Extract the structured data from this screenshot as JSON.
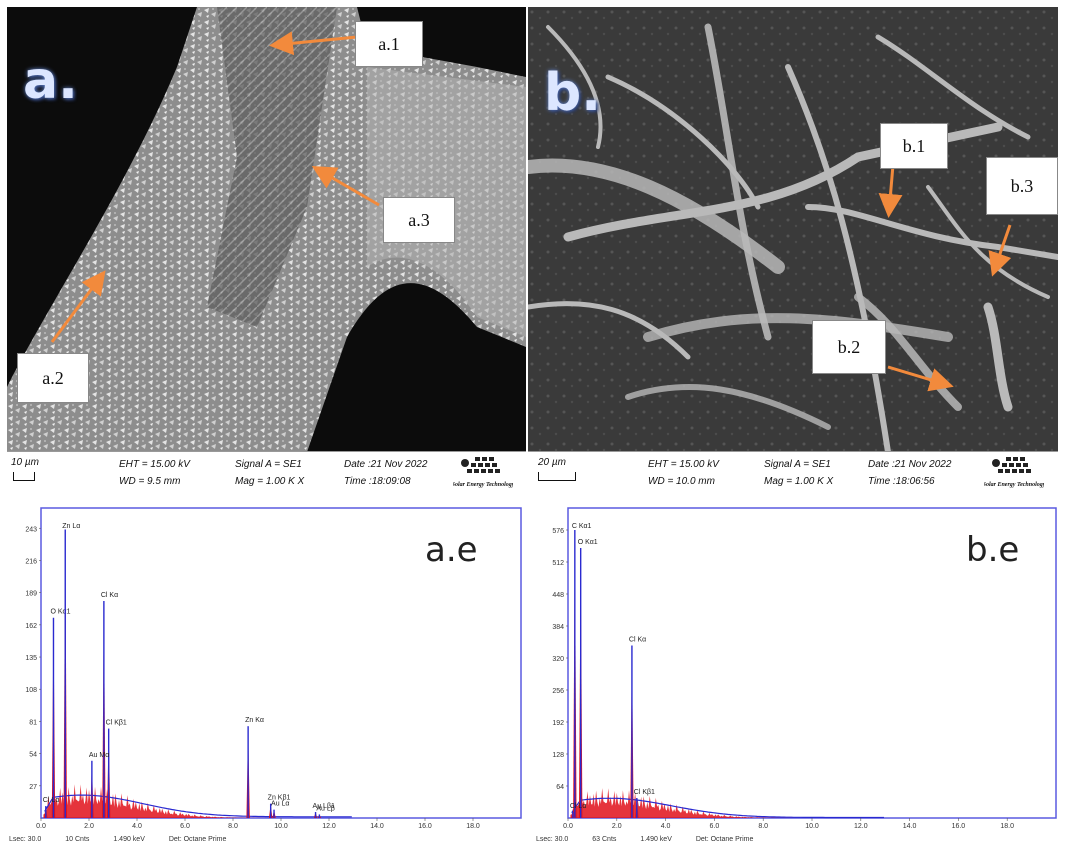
{
  "panels": {
    "a": {
      "letter": "a.",
      "labels": [
        "a.1",
        "a.2",
        "a.3"
      ],
      "scale": "10 µm",
      "eht": "EHT = 15.00 kV",
      "wd": "WD =  9.5 mm",
      "signal": "Signal A = SE1",
      "mag": "Mag =    1.00 K X",
      "date": "Date :21 Nov 2022",
      "time": "Time :18:09:08"
    },
    "b": {
      "letter": "b.",
      "labels": [
        "b.1",
        "b.2",
        "b.3"
      ],
      "scale": "20 µm",
      "eht": "EHT = 15.00 kV",
      "wd": "WD = 10.0 mm",
      "signal": "Signal A = SE1",
      "mag": "Mag =    1.00 K X",
      "date": "Date :21 Nov 2022",
      "time": "Time :18:06:56"
    }
  },
  "logo_text": "Solar Energy Technology",
  "colors": {
    "arrow": "#f28a3c",
    "spectrum_fill": "#e0101a",
    "spectrum_line": "#2a2ad0",
    "frame": "#5a5ae0"
  },
  "chart_data": [
    {
      "type": "area",
      "title": "a.e",
      "x_ticks": [
        "0.0",
        "2.0",
        "4.0",
        "6.0",
        "8.0",
        "10.0",
        "12.0",
        "14.0",
        "16.0",
        "18.0"
      ],
      "y_ticks": [
        "27",
        "54",
        "81",
        "108",
        "135",
        "162",
        "189",
        "216",
        "243"
      ],
      "xlim": [
        0,
        20
      ],
      "ylim": [
        0,
        260
      ],
      "peaks": [
        {
          "label": "O Kα1",
          "x": 0.52,
          "y": 168
        },
        {
          "label": "Zn Lα",
          "x": 1.01,
          "y": 242
        },
        {
          "label": "Cl Kα",
          "x": 2.62,
          "y": 182
        },
        {
          "label": "Cl Kβ1",
          "x": 2.82,
          "y": 75
        },
        {
          "label": "Au Mα",
          "x": 2.12,
          "y": 48
        },
        {
          "label": "Zn Kα",
          "x": 8.63,
          "y": 77
        },
        {
          "label": "Zn Kβ1",
          "x": 9.57,
          "y": 12
        },
        {
          "label": "Au Lα",
          "x": 9.71,
          "y": 7
        },
        {
          "label": "Au Lβ1",
          "x": 11.44,
          "y": 5
        },
        {
          "label": "Au Lβ",
          "x": 11.6,
          "y": 3
        },
        {
          "label": "Cl Lα",
          "x": 0.2,
          "y": 10
        }
      ],
      "footer": {
        "lsec": "Lsec: 30.0",
        "cnts": "10 Cnts",
        "kev": "1.490 keV",
        "det": "Det: Octane Prime"
      }
    },
    {
      "type": "area",
      "title": "b.e",
      "x_ticks": [
        "0.0",
        "2.0",
        "4.0",
        "6.0",
        "8.0",
        "10.0",
        "12.0",
        "14.0",
        "16.0",
        "18.0"
      ],
      "y_ticks": [
        "64",
        "128",
        "192",
        "256",
        "320",
        "384",
        "448",
        "512",
        "576"
      ],
      "xlim": [
        0,
        20
      ],
      "ylim": [
        0,
        620
      ],
      "peaks": [
        {
          "label": "C Kα1",
          "x": 0.28,
          "y": 576
        },
        {
          "label": "O Kα1",
          "x": 0.52,
          "y": 540
        },
        {
          "label": "Cl Kα",
          "x": 2.62,
          "y": 345
        },
        {
          "label": "Cl Kβ1",
          "x": 2.82,
          "y": 40
        },
        {
          "label": "Cl Lα",
          "x": 0.2,
          "y": 12
        }
      ],
      "footer": {
        "lsec": "Lsec: 30.0",
        "cnts": "63 Cnts",
        "kev": "1.490 keV",
        "det": "Det: Octane Prime"
      }
    }
  ]
}
